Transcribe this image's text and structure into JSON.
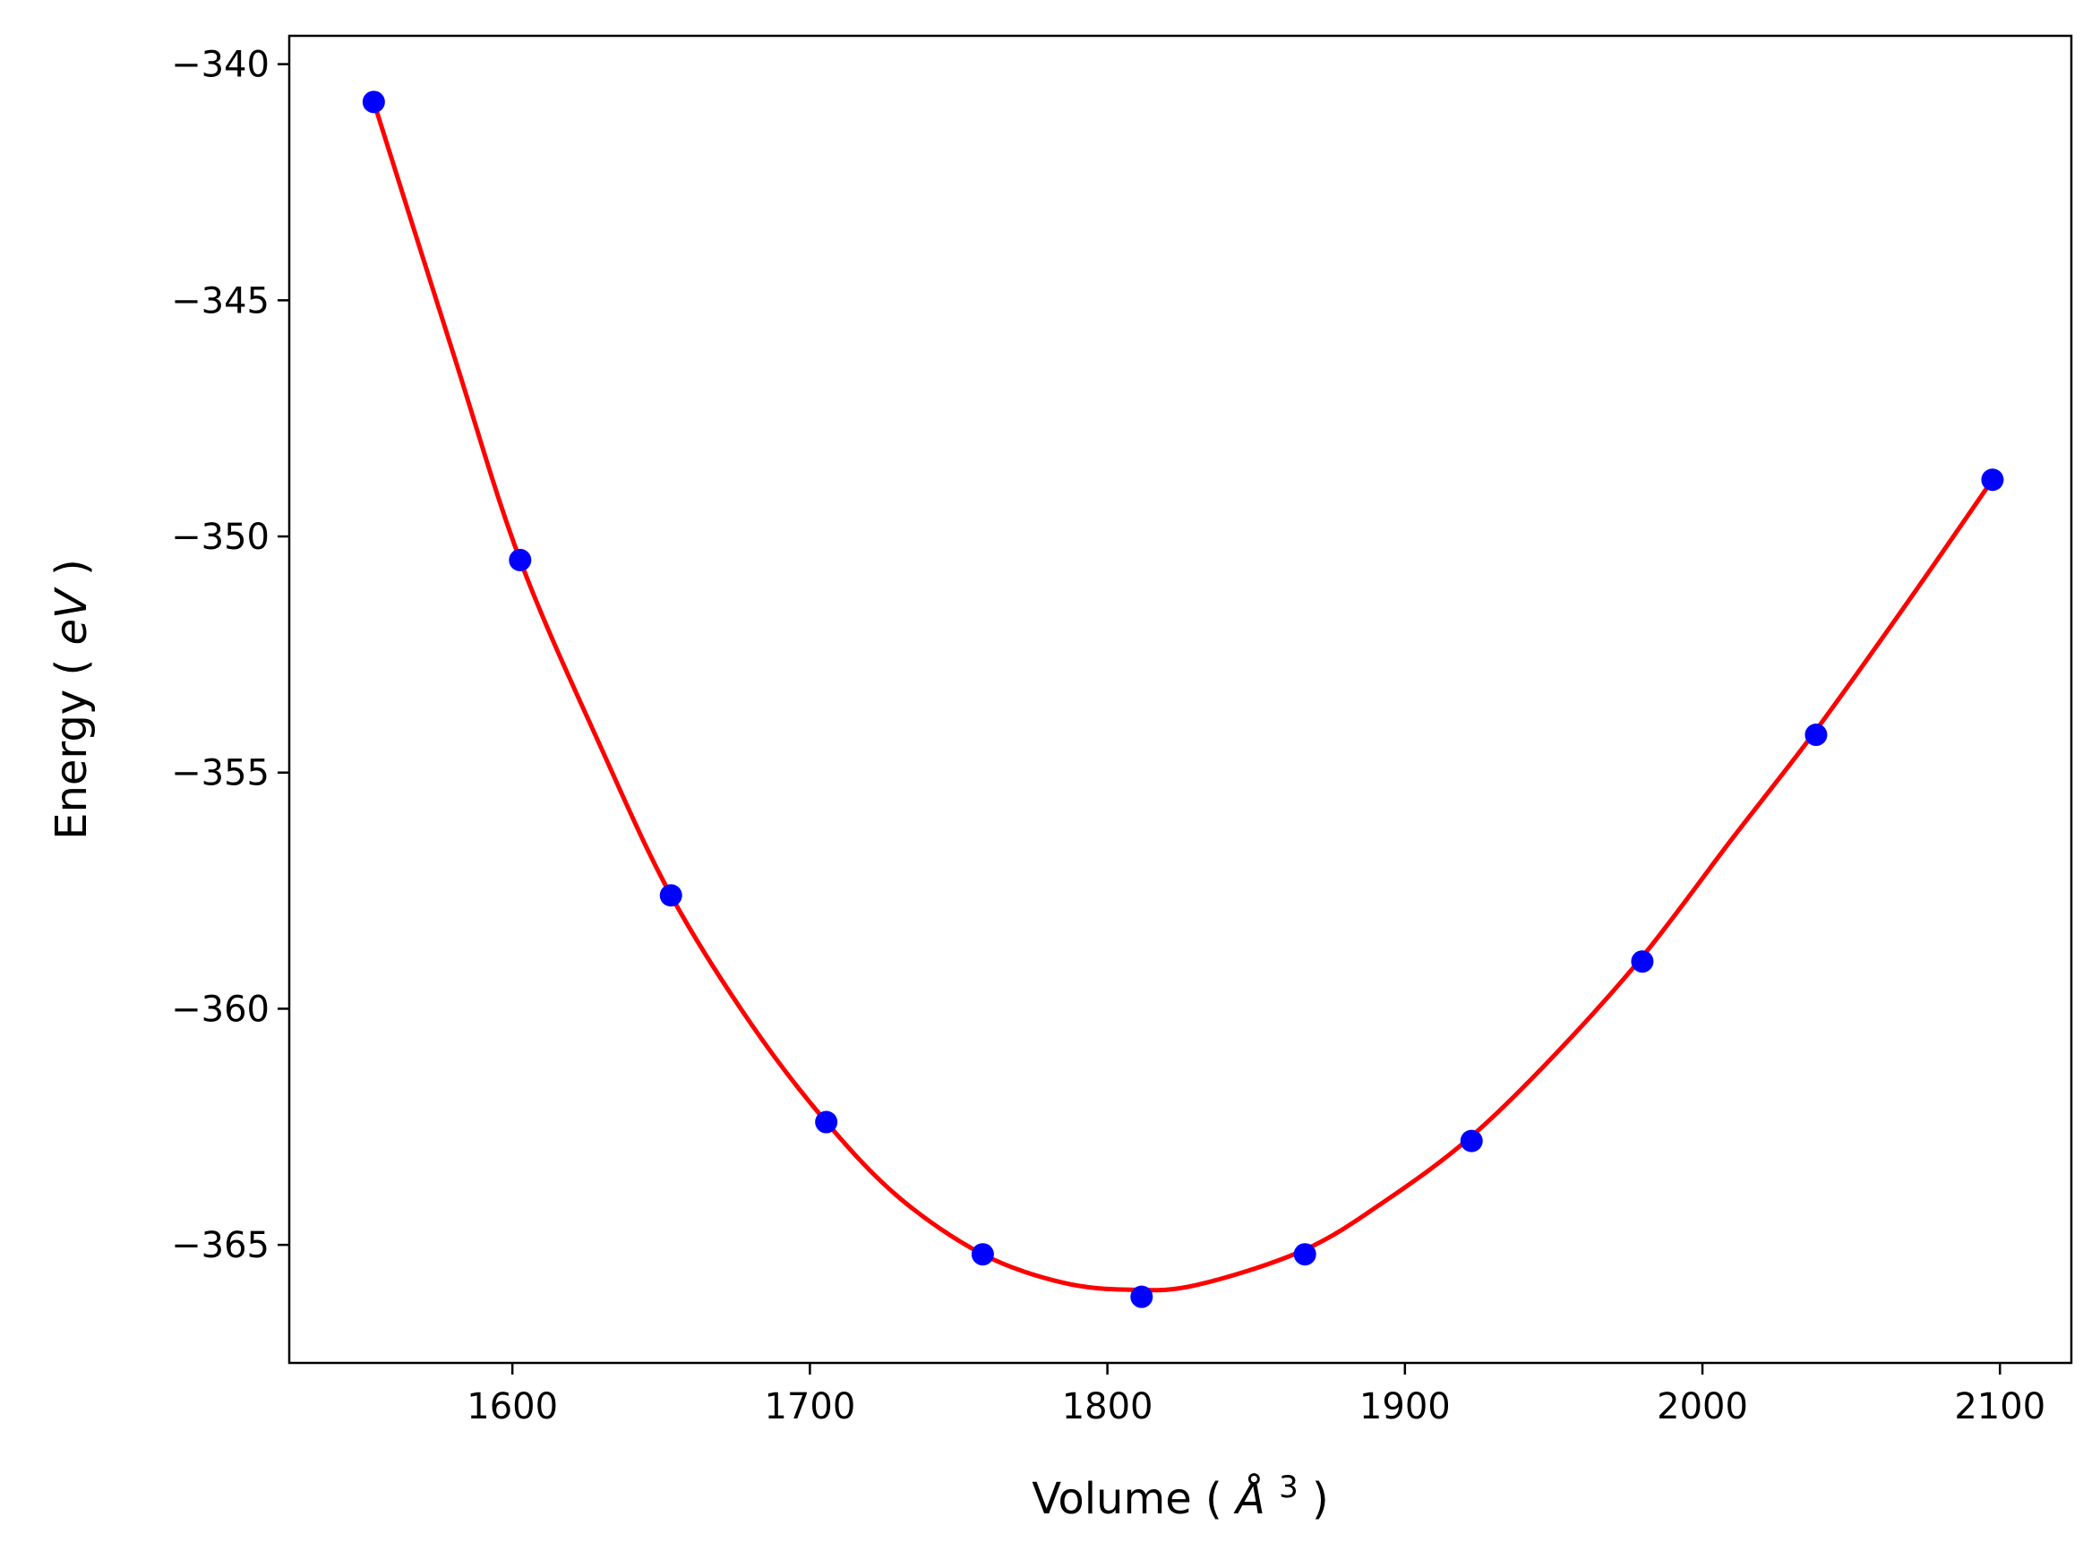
{
  "chart_data": {
    "type": "scatter",
    "title": "",
    "xlabel": "Volume",
    "xlabel_unit": "Å",
    "xlabel_unit_exponent": "3",
    "ylabel": "Energy",
    "ylabel_unit": "eV",
    "xlim": [
      1525,
      2124
    ],
    "ylim": [
      -367.5,
      -339.4
    ],
    "x_ticks": [
      1600,
      1700,
      1800,
      1900,
      2000,
      2100
    ],
    "y_ticks": [
      -340,
      -345,
      -350,
      -355,
      -360,
      -365
    ],
    "x_tick_labels": [
      "1600",
      "1700",
      "1800",
      "1900",
      "2000",
      "2100"
    ],
    "y_tick_labels": [
      "−340",
      "−345",
      "−350",
      "−355",
      "−360",
      "−365"
    ],
    "grid": false,
    "legend": "none",
    "series": [
      {
        "kind": "points",
        "color": "#0000ff",
        "x": [
          1553.4,
          1602.6,
          1653.3,
          1705.5,
          1758.1,
          1811.5,
          1866.4,
          1922.4,
          1979.8,
          2038.2,
          2097.5
        ],
        "y": [
          -340.8,
          -350.5,
          -357.6,
          -362.4,
          -365.2,
          -366.1,
          -365.2,
          -362.8,
          -359.0,
          -354.2,
          -348.8
        ]
      },
      {
        "kind": "fit-curve",
        "color": "#ff0000",
        "x": [
          1553.4,
          1580,
          1602.6,
          1630,
          1653.3,
          1680,
          1705.5,
          1730,
          1758.1,
          1785,
          1808,
          1830,
          1866.4,
          1895,
          1922.4,
          1950,
          1979.8,
          2010,
          2038.2,
          2070,
          2097.5
        ],
        "y": [
          -340.8,
          -346.1,
          -350.5,
          -354.5,
          -357.6,
          -360.3,
          -362.4,
          -364.0,
          -365.2,
          -365.8,
          -365.95,
          -365.85,
          -365.1,
          -364.0,
          -362.7,
          -361.0,
          -358.9,
          -356.4,
          -354.1,
          -351.3,
          -348.8
        ]
      }
    ]
  }
}
